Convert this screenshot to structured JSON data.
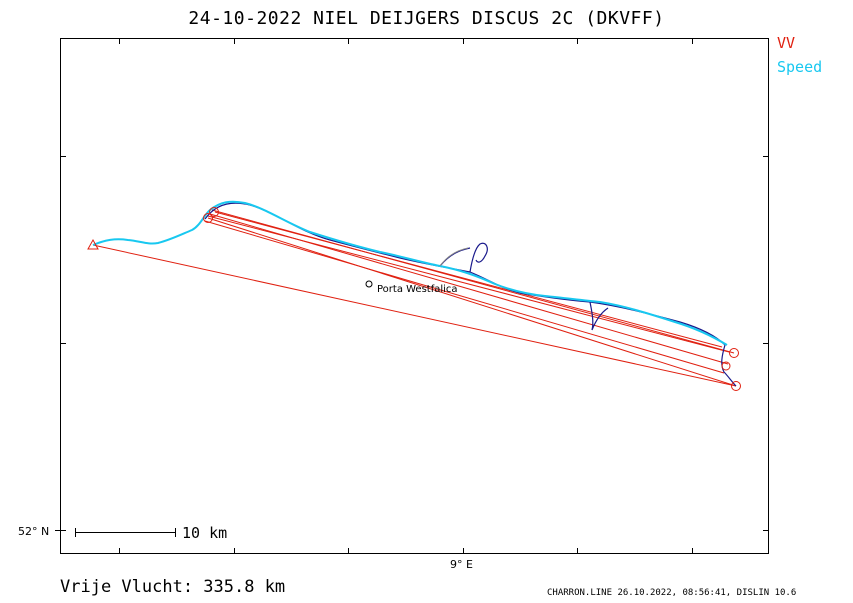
{
  "title": "24-10-2022   NIEL DEIJGERS   DISCUS 2C (DKVFF)",
  "legend": {
    "vv": {
      "label": "VV",
      "color": "#e02010"
    },
    "speed": {
      "label": "Speed",
      "color": "#18c8f0"
    }
  },
  "axis": {
    "lat_label": "52° N",
    "lon_label": "9° E"
  },
  "scale_bar": {
    "label": "10  km",
    "length_km": 10
  },
  "place": {
    "name": "Porta Westfalica"
  },
  "distance_text": "Vrije Vlucht:  335.8 km",
  "footer": "CHARRON.LINE 26.10.2022, 08:56:41, DISLIN 10.6",
  "colors": {
    "task_line": "#e02010",
    "track_speed": "#18c8f0",
    "track_vario": "#1a1a8c",
    "frame": "#000000"
  }
}
